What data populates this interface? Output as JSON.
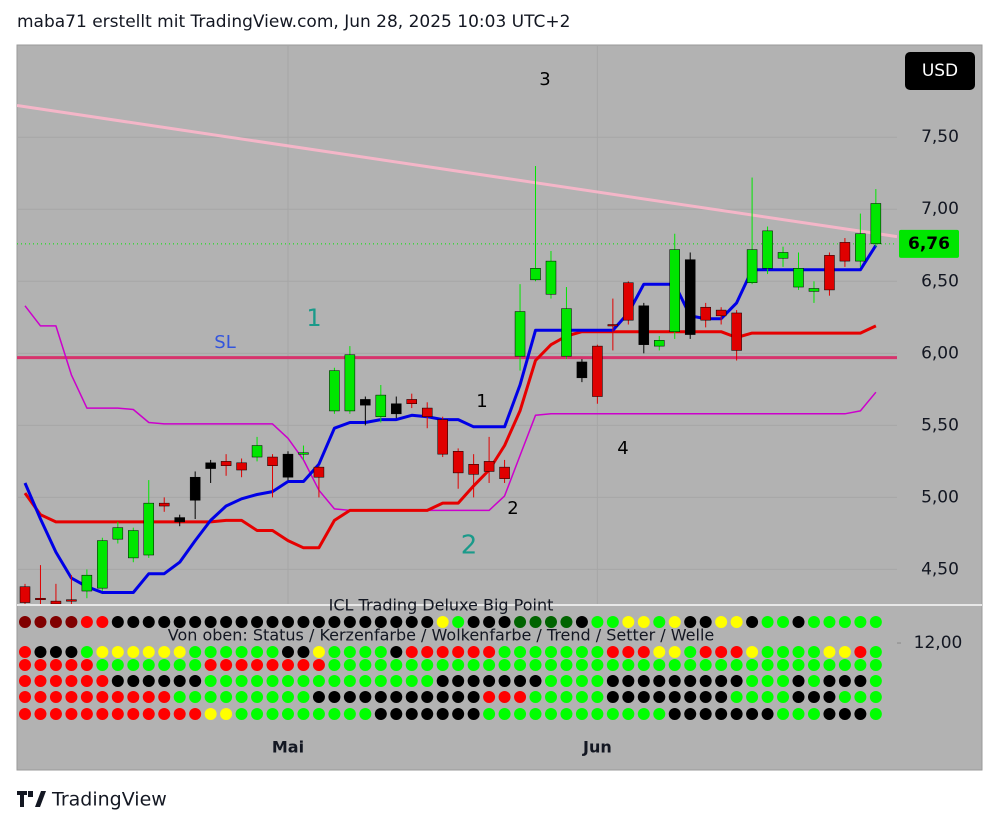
{
  "chart_data": {
    "type": "candlestick",
    "title": "maba71 erstellt mit TradingView.com, Jun 28, 2025 10:03 UTC+2",
    "currency": "USD",
    "brand": "TradingView",
    "categories": [
      null,
      null,
      null,
      null,
      null,
      null,
      null,
      null,
      null,
      null,
      null,
      null,
      null,
      null,
      null,
      null,
      null,
      "Mai",
      null,
      null,
      null,
      null,
      null,
      null,
      null,
      null,
      null,
      null,
      null,
      null,
      null,
      null,
      null,
      null,
      null,
      null,
      null,
      "Jun",
      null,
      null,
      null,
      null,
      null,
      null,
      null,
      null,
      null,
      null,
      null,
      null,
      null,
      null,
      null,
      null,
      null,
      null
    ],
    "open": [
      4.38,
      4.3,
      4.28,
      4.29,
      4.35,
      4.37,
      4.71,
      4.58,
      4.6,
      4.96,
      4.86,
      4.98,
      5.2,
      5.25,
      5.24,
      5.28,
      5.28,
      5.3,
      5.3,
      5.21,
      5.6,
      5.6,
      5.64,
      5.56,
      5.65,
      5.68,
      5.62,
      5.54,
      5.32,
      5.23,
      5.25,
      5.21,
      5.98,
      6.51,
      6.41,
      5.98,
      5.94,
      6.05,
      6.2,
      6.49,
      6.33,
      6.05,
      6.15,
      6.65,
      6.32,
      6.3,
      6.28,
      6.49,
      6.59,
      6.66,
      6.46,
      6.43,
      6.68,
      6.77,
      6.64,
      6.76
    ],
    "high": [
      4.4,
      4.53,
      4.4,
      4.46,
      4.5,
      4.72,
      4.83,
      4.79,
      5.12,
      5.0,
      4.88,
      5.18,
      5.26,
      5.3,
      5.27,
      5.42,
      5.3,
      5.32,
      5.36,
      5.22,
      5.9,
      6.05,
      5.7,
      5.78,
      5.7,
      5.72,
      5.66,
      5.56,
      5.34,
      5.3,
      5.42,
      5.26,
      6.48,
      7.3,
      6.71,
      6.46,
      5.96,
      6.06,
      6.38,
      6.5,
      6.35,
      6.12,
      6.83,
      6.7,
      6.35,
      6.32,
      6.3,
      7.22,
      6.88,
      6.74,
      6.7,
      6.5,
      6.7,
      6.8,
      6.97,
      7.14
    ],
    "low": [
      4.2,
      4.2,
      4.2,
      4.2,
      4.3,
      4.35,
      4.68,
      4.55,
      4.58,
      4.9,
      4.8,
      4.85,
      5.1,
      5.15,
      5.14,
      5.25,
      5.0,
      5.12,
      5.26,
      5.0,
      5.58,
      5.58,
      5.5,
      5.52,
      5.55,
      5.62,
      5.48,
      5.28,
      5.06,
      5.0,
      5.1,
      5.1,
      5.88,
      6.5,
      6.38,
      5.96,
      5.8,
      5.65,
      6.02,
      6.2,
      6.0,
      6.02,
      6.1,
      6.1,
      6.18,
      6.2,
      5.95,
      6.48,
      6.55,
      6.6,
      6.44,
      6.35,
      6.4,
      6.6,
      6.6,
      6.74
    ],
    "close": [
      4.27,
      4.29,
      4.26,
      4.28,
      4.46,
      4.7,
      4.79,
      4.77,
      4.96,
      4.94,
      4.83,
      5.14,
      5.24,
      5.22,
      5.19,
      5.36,
      5.22,
      5.14,
      5.31,
      5.14,
      5.88,
      5.99,
      5.68,
      5.71,
      5.58,
      5.65,
      5.56,
      5.3,
      5.17,
      5.16,
      5.18,
      5.13,
      6.29,
      6.59,
      6.64,
      6.31,
      5.83,
      5.7,
      6.19,
      6.23,
      6.06,
      6.09,
      6.72,
      6.13,
      6.23,
      6.26,
      6.02,
      6.72,
      6.85,
      6.7,
      6.59,
      6.45,
      6.44,
      6.64,
      6.83,
      7.04
    ],
    "candle_colors": [
      "#e00000",
      "#e00000",
      "#e00000",
      "#e00000",
      "#00e600",
      "#00e600",
      "#00e600",
      "#00e600",
      "#00e600",
      "#e00000",
      "#000000",
      "#000000",
      "#000000",
      "#e00000",
      "#e00000",
      "#00e600",
      "#e00000",
      "#000000",
      "#00e600",
      "#e00000",
      "#00e600",
      "#00e600",
      "#000000",
      "#00e600",
      "#000000",
      "#e00000",
      "#e00000",
      "#e00000",
      "#e00000",
      "#e00000",
      "#e00000",
      "#e00000",
      "#00e600",
      "#00e600",
      "#00e600",
      "#00e600",
      "#000000",
      "#e00000",
      "#e00000",
      "#e00000",
      "#000000",
      "#00e600",
      "#00e600",
      "#000000",
      "#e00000",
      "#e00000",
      "#e00000",
      "#00e600",
      "#00e600",
      "#00e600",
      "#00e600",
      "#00e600",
      "#e00000",
      "#e00000",
      "#00e600",
      "#00e600"
    ],
    "ylim": [
      4.26,
      8.14
    ],
    "yticks": [
      {
        "value": 4.5,
        "label": "4,50"
      },
      {
        "value": 5,
        "label": "5,00"
      },
      {
        "value": 5.5,
        "label": "5,50"
      },
      {
        "value": 6,
        "label": "6,00"
      },
      {
        "value": 6.5,
        "label": "6,50"
      },
      {
        "value": 7,
        "label": "7,00"
      },
      {
        "value": 7.5,
        "label": "7,50"
      }
    ],
    "last_price": {
      "value": 6.76,
      "label": "6,76",
      "color": "#00e600"
    },
    "lines": [
      {
        "color": "#cc00cc",
        "width": 1.5,
        "values": [
          6.33,
          6.19,
          6.19,
          5.85,
          5.62,
          5.62,
          5.62,
          5.61,
          5.52,
          5.51,
          5.51,
          5.51,
          5.51,
          5.51,
          5.51,
          5.51,
          5.51,
          5.41,
          5.26,
          5.05,
          4.92,
          4.91,
          4.91,
          4.91,
          4.91,
          4.91,
          4.91,
          4.91,
          4.91,
          4.91,
          4.91,
          5.01,
          5.29,
          5.57,
          5.58,
          5.58,
          5.58,
          5.58,
          5.58,
          5.58,
          5.58,
          5.58,
          5.58,
          5.58,
          5.58,
          5.58,
          5.58,
          5.58,
          5.58,
          5.58,
          5.58,
          5.58,
          5.58,
          5.58,
          5.6,
          5.73
        ]
      },
      {
        "color": "#e60000",
        "width": 3,
        "values": [
          5.03,
          4.88,
          4.83,
          4.83,
          4.83,
          4.83,
          4.83,
          4.83,
          4.83,
          4.83,
          4.83,
          4.83,
          4.83,
          4.84,
          4.84,
          4.77,
          4.77,
          4.7,
          4.65,
          4.65,
          4.84,
          4.91,
          4.91,
          4.91,
          4.91,
          4.91,
          4.91,
          4.96,
          4.96,
          5.08,
          5.19,
          5.36,
          5.6,
          5.95,
          6.06,
          6.12,
          6.15,
          6.15,
          6.15,
          6.15,
          6.15,
          6.15,
          6.15,
          6.15,
          6.15,
          6.15,
          6.11,
          6.14,
          6.14,
          6.14,
          6.14,
          6.14,
          6.14,
          6.14,
          6.14,
          6.19
        ]
      },
      {
        "color": "#0000e6",
        "width": 3,
        "values": [
          5.1,
          4.85,
          4.62,
          4.44,
          4.38,
          4.34,
          4.34,
          4.34,
          4.47,
          4.47,
          4.55,
          4.7,
          4.84,
          4.94,
          4.99,
          5.02,
          5.04,
          5.11,
          5.11,
          5.23,
          5.48,
          5.52,
          5.52,
          5.54,
          5.54,
          5.57,
          5.56,
          5.54,
          5.54,
          5.49,
          5.49,
          5.49,
          5.78,
          6.16,
          6.16,
          6.16,
          6.16,
          6.16,
          6.16,
          6.28,
          6.48,
          6.48,
          6.48,
          6.26,
          6.24,
          6.24,
          6.35,
          6.58,
          6.58,
          6.58,
          6.58,
          6.58,
          6.58,
          6.58,
          6.58,
          6.75
        ]
      }
    ],
    "hline": {
      "value": 5.97,
      "color": "#d6336c"
    },
    "trendline": {
      "values": [
        7.72,
        6.81
      ],
      "color": "#f4b6c8"
    },
    "annotations": [
      {
        "text": "3",
        "color": "#000000"
      },
      {
        "text": "1",
        "color": "#000000"
      },
      {
        "text": "2",
        "color": "#000000"
      },
      {
        "text": "4",
        "color": "#000000"
      },
      {
        "text": "2",
        "color": "#1a9a8a"
      },
      {
        "text": "1",
        "color": "#1a9a8a"
      },
      {
        "text": "SL",
        "color": "#3355dd"
      }
    ],
    "indicator": {
      "title": "ICL Trading Deluxe Big Point",
      "subtitle": "Von oben: Status / Kerzenfarbe / Wolkenfarbe / Trend / Setter / Welle",
      "ylim": [
        0,
        15.5
      ],
      "yticks": [
        {
          "value": 12,
          "label": "12,00"
        }
      ],
      "rows": [
        [
          "maroon",
          "maroon",
          "maroon",
          "maroon",
          "red",
          "red",
          "black",
          "black",
          "black",
          "black",
          "black",
          "black",
          "black",
          "black",
          "black",
          "black",
          "black",
          "black",
          "black",
          "black",
          "black",
          "black",
          "black",
          "black",
          "black",
          "black",
          "black",
          "yellow",
          "lime",
          "black",
          "black",
          "black",
          "darkgreen",
          "darkgreen",
          "darkgreen",
          "darkgreen",
          "black",
          "lime",
          "lime",
          "yellow",
          "yellow",
          "lime",
          "yellow",
          "black",
          "black",
          "yellow",
          "yellow",
          "black",
          "lime",
          "lime",
          "black",
          "lime",
          "lime",
          "lime",
          "lime",
          "lime"
        ],
        [
          "red",
          "black",
          "black",
          "black",
          "lime",
          "yellow",
          "yellow",
          "yellow",
          "yellow",
          "yellow",
          "yellow",
          "lime",
          "lime",
          "lime",
          "lime",
          "lime",
          "lime",
          "black",
          "black",
          "yellow",
          "lime",
          "lime",
          "lime",
          "lime",
          "black",
          "red",
          "red",
          "red",
          "red",
          "red",
          "red",
          "lime",
          "lime",
          "lime",
          "lime",
          "lime",
          "lime",
          "lime",
          "red",
          "red",
          "red",
          "yellow",
          "yellow",
          "lime",
          "red",
          "red",
          "red",
          "yellow",
          "lime",
          "lime",
          "lime",
          "lime",
          "yellow",
          "yellow",
          "red",
          "lime"
        ],
        [
          "red",
          "red",
          "red",
          "red",
          "red",
          "lime",
          "lime",
          "lime",
          "lime",
          "lime",
          "lime",
          "lime",
          "red",
          "red",
          "red",
          "red",
          "red",
          "red",
          "red",
          "red",
          "lime",
          "lime",
          "lime",
          "lime",
          "lime",
          "lime",
          "lime",
          "lime",
          "lime",
          "lime",
          "lime",
          "lime",
          "lime",
          "lime",
          "lime",
          "lime",
          "lime",
          "lime",
          "lime",
          "lime",
          "lime",
          "lime",
          "lime",
          "lime",
          "lime",
          "lime",
          "lime",
          "lime",
          "lime",
          "lime",
          "lime",
          "lime",
          "lime",
          "lime",
          "lime",
          "lime"
        ],
        [
          "red",
          "red",
          "red",
          "red",
          "red",
          "red",
          "black",
          "black",
          "black",
          "black",
          "black",
          "black",
          "lime",
          "lime",
          "lime",
          "lime",
          "lime",
          "lime",
          "lime",
          "lime",
          "lime",
          "lime",
          "lime",
          "lime",
          "lime",
          "lime",
          "lime",
          "black",
          "black",
          "black",
          "black",
          "black",
          "black",
          "black",
          "lime",
          "lime",
          "lime",
          "lime",
          "black",
          "black",
          "black",
          "black",
          "black",
          "black",
          "black",
          "black",
          "black",
          "lime",
          "lime",
          "lime",
          "black",
          "lime",
          "black",
          "black",
          "black",
          "lime"
        ],
        [
          "red",
          "red",
          "red",
          "red",
          "red",
          "red",
          "red",
          "red",
          "red",
          "red",
          "lime",
          "lime",
          "lime",
          "lime",
          "lime",
          "lime",
          "lime",
          "lime",
          "lime",
          "black",
          "black",
          "black",
          "black",
          "black",
          "black",
          "black",
          "black",
          "black",
          "black",
          "black",
          "red",
          "red",
          "red",
          "lime",
          "lime",
          "lime",
          "lime",
          "lime",
          "black",
          "black",
          "black",
          "black",
          "black",
          "black",
          "black",
          "black",
          "lime",
          "lime",
          "lime",
          "lime",
          "black",
          "black",
          "black",
          "lime",
          "lime",
          "lime"
        ],
        [
          "red",
          "red",
          "red",
          "red",
          "red",
          "red",
          "red",
          "red",
          "red",
          "red",
          "red",
          "red",
          "yellow",
          "yellow",
          "lime",
          "lime",
          "lime",
          "lime",
          "lime",
          "lime",
          "lime",
          "lime",
          "lime",
          "black",
          "black",
          "black",
          "black",
          "black",
          "black",
          "black",
          "lime",
          "lime",
          "lime",
          "lime",
          "lime",
          "lime",
          "lime",
          "lime",
          "lime",
          "lime",
          "lime",
          "lime",
          "black",
          "black",
          "black",
          "black",
          "black",
          "black",
          "black",
          "lime",
          "lime",
          "lime",
          "black",
          "black",
          "black",
          "lime"
        ]
      ]
    }
  }
}
